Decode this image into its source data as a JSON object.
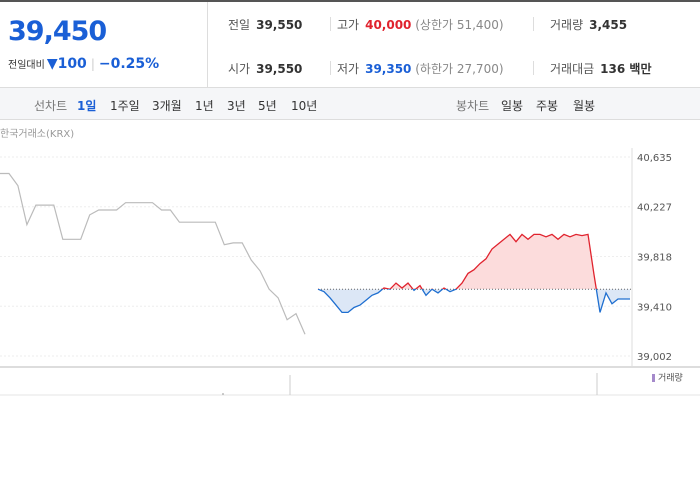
{
  "header": {
    "price": "39,450",
    "change_label": "전일대비",
    "change": "▼100",
    "change_pct": "−0.25%"
  },
  "quote": {
    "prev_label": "전일",
    "prev": "39,550",
    "high_label": "고가",
    "high": "40,000",
    "upper_limit": "(상한가 51,400)",
    "volume_label": "거래량",
    "volume": "3,455",
    "open_label": "시가",
    "open": "39,550",
    "low_label": "저가",
    "low": "39,350",
    "lower_limit": "(하한가 27,700)",
    "amount_label": "거래대금",
    "amount": "136 백만"
  },
  "tabs": {
    "line_label": "선차트",
    "line_tabs": [
      "1일",
      "1주일",
      "3개월",
      "1년",
      "3년",
      "5년",
      "10년"
    ],
    "candle_label": "봉차트",
    "candle_tabs": [
      "일봉",
      "주봉",
      "월봉"
    ]
  },
  "chart_data": {
    "type": "line",
    "source": "한국거래소(KRX)",
    "volume_legend": "거래량",
    "ylim": [
      39002,
      40635
    ],
    "yticks": [
      {
        "value": 39002,
        "label": "39,002"
      },
      {
        "value": 39410,
        "label": "39,410"
      },
      {
        "value": 39818,
        "label": "39,818"
      },
      {
        "value": 40227,
        "label": "40,227"
      },
      {
        "value": 40635,
        "label": "40,635"
      }
    ],
    "baseline": 39550,
    "series": [
      {
        "color": "#bbbbbb",
        "values": [
          40500,
          40500,
          40400,
          40080,
          40240,
          40240,
          40240,
          39960,
          39960,
          39960,
          40160,
          40200,
          40200,
          40200,
          40260,
          40260,
          40260,
          40260,
          40200,
          40200,
          40100,
          40100,
          40100,
          40100,
          40100,
          39915,
          39930,
          39930,
          39790,
          39700,
          39550,
          39480,
          39300,
          39350,
          39180
        ]
      },
      {
        "color": "#e0232e",
        "down_color": "#1f6fd0",
        "values": [
          39550,
          39530,
          39480,
          39420,
          39360,
          39360,
          39400,
          39420,
          39460,
          39500,
          39520,
          39560,
          39550,
          39600,
          39560,
          39600,
          39540,
          39580,
          39500,
          39550,
          39520,
          39560,
          39530,
          39550,
          39600,
          39680,
          39710,
          39760,
          39800,
          39880,
          39920,
          39960,
          40000,
          39940,
          40000,
          39960,
          40000,
          40000,
          39980,
          40000,
          39960,
          40000,
          39980,
          40000,
          39990,
          40000,
          39670,
          39360,
          39520,
          39430,
          39470,
          39470,
          39470
        ]
      }
    ]
  }
}
